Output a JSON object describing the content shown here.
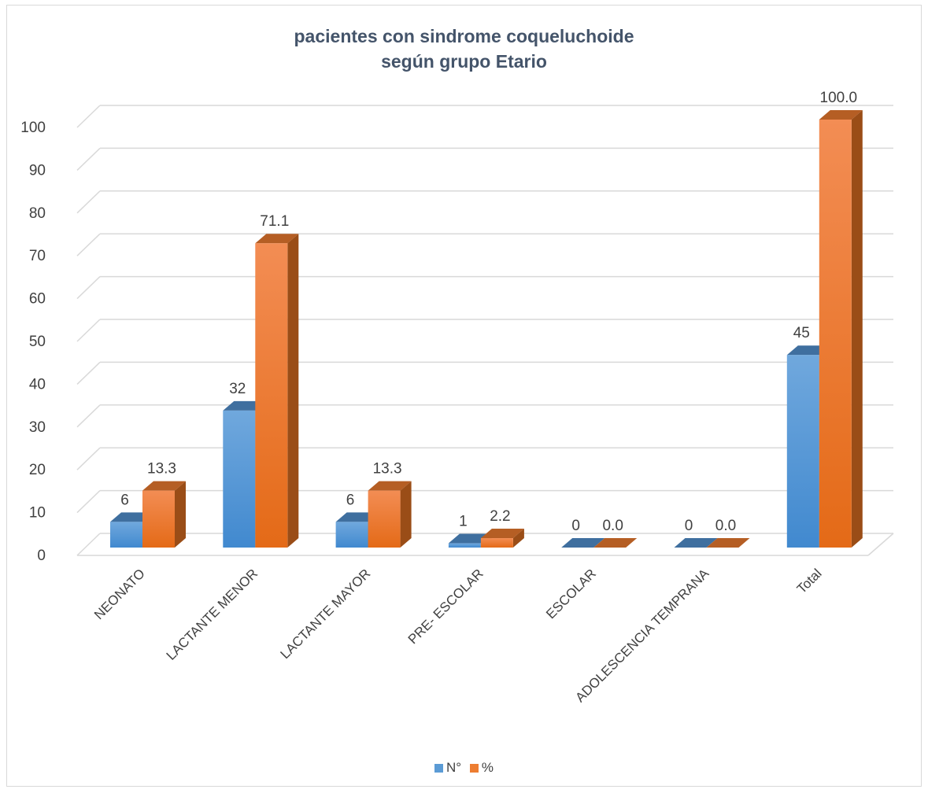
{
  "chart_data": {
    "type": "bar",
    "title_lines": [
      "pacientes con sindrome coqueluchoide",
      "según grupo Etario"
    ],
    "categories": [
      "NEONATO",
      "LACTANTE MENOR",
      "LACTANTE MAYOR",
      "PRE- ESCOLAR",
      "ESCOLAR",
      "ADOLESCENCIA TEMPRANA",
      "Total"
    ],
    "series": [
      {
        "name": "N°",
        "values": [
          6,
          32,
          6,
          1,
          0,
          0,
          45
        ],
        "labels": [
          "6",
          "32",
          "6",
          "1",
          "0",
          "0",
          "45"
        ],
        "color": "#5b9bd5"
      },
      {
        "name": "%",
        "values": [
          13.3,
          71.1,
          13.3,
          2.2,
          0.0,
          0.0,
          100.0
        ],
        "labels": [
          "13.3",
          "71.1",
          "13.3",
          "2.2",
          "0.0",
          "0.0",
          "100.0"
        ],
        "color": "#ed7d31"
      }
    ],
    "ylim": [
      0,
      100
    ],
    "yticks": [
      0,
      10,
      20,
      30,
      40,
      50,
      60,
      70,
      80,
      90,
      100
    ],
    "grid": true,
    "legend_position": "bottom",
    "style": "3d-clustered-column"
  }
}
